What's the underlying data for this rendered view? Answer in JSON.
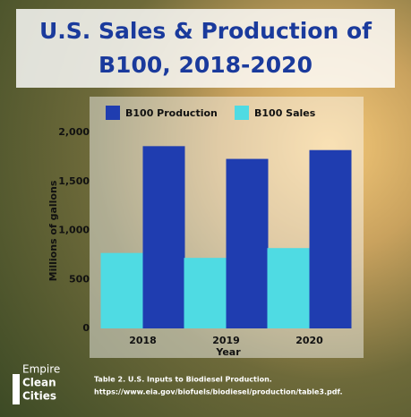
{
  "chart_data": {
    "type": "bar",
    "title": "U.S. Sales & Production of B100, 2018-2020",
    "x_label": "Year",
    "y_label": "Millions of gallons",
    "categories": [
      "2018",
      "2019",
      "2020"
    ],
    "series": [
      {
        "name": "B100 Production",
        "color": "#1f3db0",
        "values": [
          1860,
          1730,
          1820
        ]
      },
      {
        "name": "B100 Sales",
        "color": "#4fdbe3",
        "values": [
          770,
          720,
          820
        ]
      }
    ],
    "ylim": [
      0,
      2000
    ],
    "yticks": [
      0,
      500,
      {
        "value": 1000,
        "label": "1,000"
      },
      {
        "value": 1500,
        "label": "1,500"
      },
      {
        "value": 2000,
        "label": "2,000"
      }
    ],
    "legend": "top",
    "source_title": "Table 2. U.S. Inputs to Biodiesel Production.",
    "source_url": "https://www.eia.gov/biofuels/biodiesel/production/table3.pdf.",
    "logo": [
      "Empire",
      "Clean",
      "Cities"
    ]
  }
}
